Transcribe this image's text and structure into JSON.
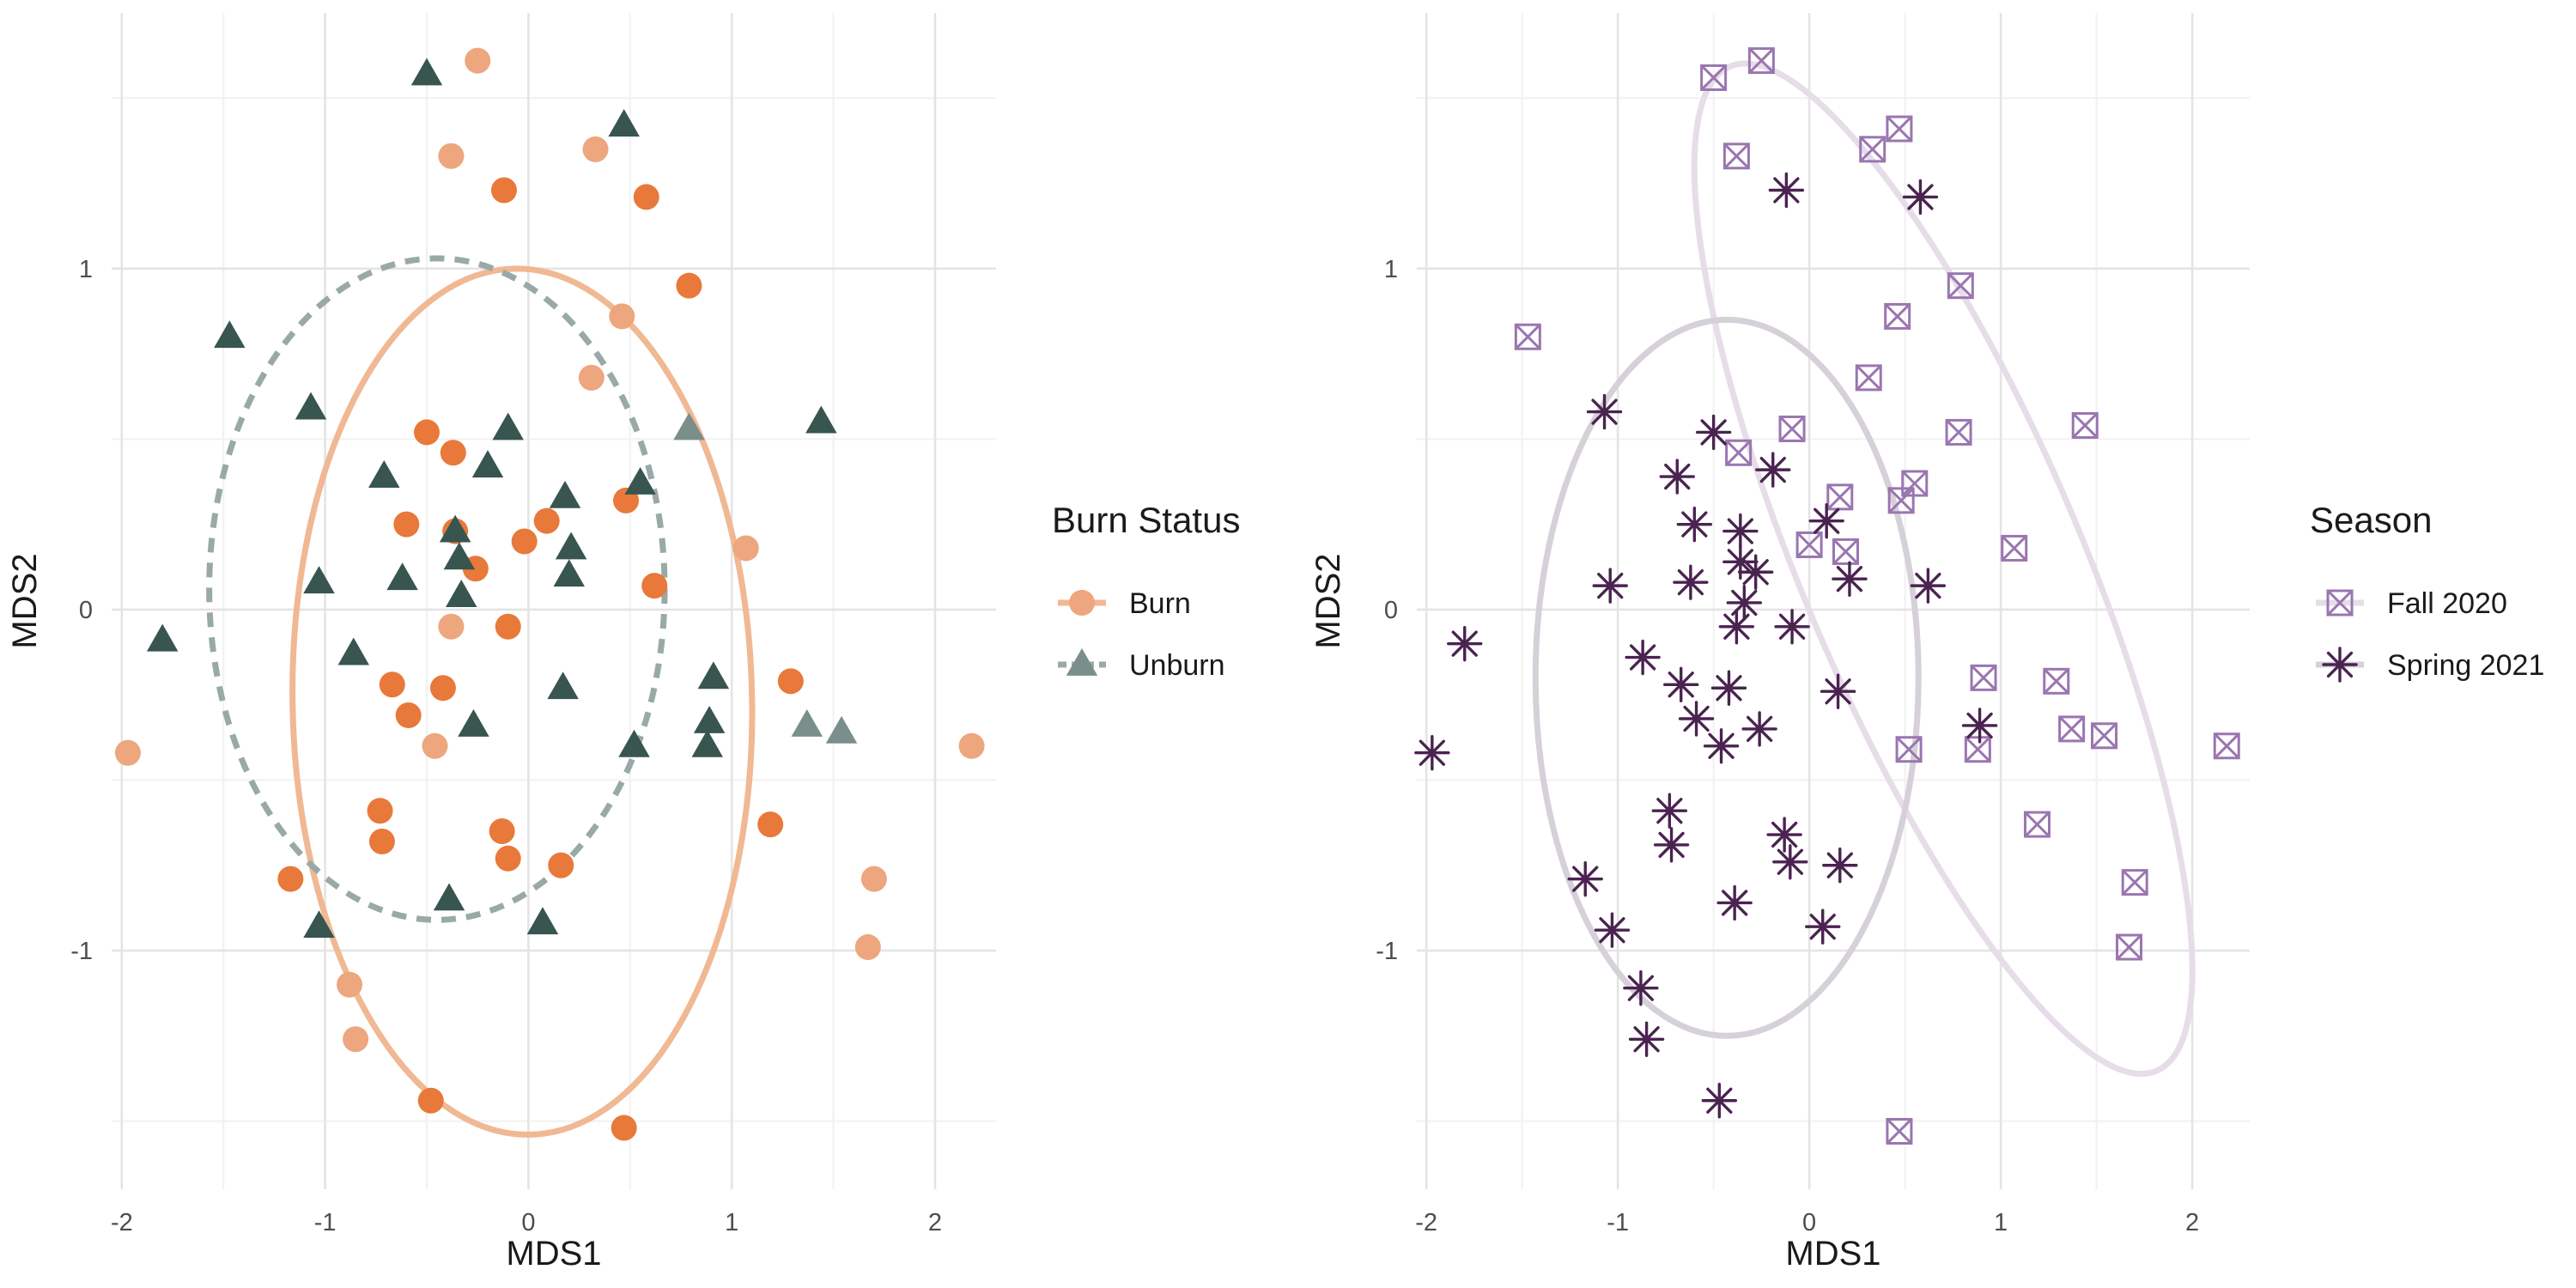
{
  "chart_data": [
    {
      "type": "scatter",
      "panel": "left",
      "xlabel": "MDS1",
      "ylabel": "MDS2",
      "xlim": [
        -2.05,
        2.3
      ],
      "ylim": [
        -1.7,
        1.75
      ],
      "xticks": [
        -2,
        -1,
        0,
        1,
        2
      ],
      "yticks": [
        -1,
        0,
        1
      ],
      "grid": true,
      "legend": {
        "title": "Burn Status",
        "position": "right"
      },
      "series": [
        {
          "name": "Burn",
          "shape": "circle",
          "color": "#e8793a",
          "light_color": "#eda67e",
          "ellipse_color": "#f0b893",
          "ellipse_style": "solid",
          "ellipse": {
            "cx": -0.03,
            "cy": -0.27,
            "rx": 1.13,
            "ry": 1.27,
            "angle": 1
          },
          "points": [
            [
              -0.25,
              1.61,
              1
            ],
            [
              -0.38,
              1.33,
              1
            ],
            [
              -0.12,
              1.23,
              0
            ],
            [
              0.33,
              1.35,
              1
            ],
            [
              0.58,
              1.21,
              0
            ],
            [
              0.79,
              0.95,
              0
            ],
            [
              0.46,
              0.86,
              1
            ],
            [
              0.31,
              0.68,
              1
            ],
            [
              -0.5,
              0.52,
              0
            ],
            [
              -0.37,
              0.46,
              0
            ],
            [
              -0.6,
              0.25,
              0
            ],
            [
              -0.36,
              0.23,
              0
            ],
            [
              0.09,
              0.26,
              0
            ],
            [
              -0.02,
              0.2,
              0
            ],
            [
              -0.26,
              0.12,
              0
            ],
            [
              0.48,
              0.32,
              0
            ],
            [
              0.62,
              0.07,
              0
            ],
            [
              1.07,
              0.18,
              1
            ],
            [
              -0.38,
              -0.05,
              1
            ],
            [
              -0.1,
              -0.05,
              0
            ],
            [
              -0.67,
              -0.22,
              0
            ],
            [
              -0.42,
              -0.23,
              0
            ],
            [
              -0.59,
              -0.31,
              0
            ],
            [
              -0.46,
              -0.4,
              1
            ],
            [
              1.29,
              -0.21,
              0
            ],
            [
              -1.97,
              -0.42,
              1
            ],
            [
              -0.73,
              -0.59,
              0
            ],
            [
              -0.72,
              -0.68,
              0
            ],
            [
              -0.13,
              -0.65,
              0
            ],
            [
              -0.1,
              -0.73,
              0
            ],
            [
              0.16,
              -0.75,
              0
            ],
            [
              1.19,
              -0.63,
              0
            ],
            [
              -1.17,
              -0.79,
              0
            ],
            [
              1.7,
              -0.79,
              1
            ],
            [
              -0.88,
              -1.1,
              1
            ],
            [
              -0.85,
              -1.26,
              1
            ],
            [
              1.67,
              -0.99,
              1
            ],
            [
              2.18,
              -0.4,
              1
            ],
            [
              -0.48,
              -1.44,
              0
            ],
            [
              0.47,
              -1.52,
              0
            ]
          ]
        },
        {
          "name": "Unburn",
          "shape": "triangle",
          "color": "#385550",
          "light_color": "#7a8f8c",
          "ellipse_color": "#99aaa6",
          "ellipse_style": "dashed",
          "ellipse": {
            "cx": -0.45,
            "cy": 0.06,
            "rx": 1.12,
            "ry": 0.97,
            "angle": 0
          },
          "points": [
            [
              -0.5,
              1.57,
              0
            ],
            [
              0.47,
              1.42,
              0
            ],
            [
              -1.47,
              0.8,
              0
            ],
            [
              -1.07,
              0.59,
              0
            ],
            [
              -0.1,
              0.53,
              0
            ],
            [
              0.79,
              0.53,
              1
            ],
            [
              1.44,
              0.55,
              0
            ],
            [
              -0.71,
              0.39,
              0
            ],
            [
              -0.2,
              0.42,
              0
            ],
            [
              0.55,
              0.37,
              0
            ],
            [
              0.18,
              0.33,
              0
            ],
            [
              -0.36,
              0.23,
              0
            ],
            [
              0.21,
              0.18,
              0
            ],
            [
              -1.03,
              0.08,
              0
            ],
            [
              -0.62,
              0.09,
              0
            ],
            [
              -0.34,
              0.15,
              0
            ],
            [
              0.2,
              0.1,
              0
            ],
            [
              -0.33,
              0.04,
              0
            ],
            [
              -1.8,
              -0.09,
              0
            ],
            [
              -0.86,
              -0.13,
              0
            ],
            [
              0.91,
              -0.2,
              0
            ],
            [
              0.17,
              -0.23,
              0
            ],
            [
              -0.27,
              -0.34,
              0
            ],
            [
              0.89,
              -0.33,
              0
            ],
            [
              1.37,
              -0.34,
              1
            ],
            [
              1.54,
              -0.36,
              1
            ],
            [
              0.52,
              -0.4,
              0
            ],
            [
              0.88,
              -0.4,
              0
            ],
            [
              -1.03,
              -0.93,
              0
            ],
            [
              -0.39,
              -0.85,
              0
            ],
            [
              0.07,
              -0.92,
              0
            ]
          ]
        }
      ]
    },
    {
      "type": "scatter",
      "panel": "right",
      "xlabel": "MDS1",
      "ylabel": "MDS2",
      "xlim": [
        -2.05,
        2.3
      ],
      "ylim": [
        -1.7,
        1.75
      ],
      "xticks": [
        -2,
        -1,
        0,
        1,
        2
      ],
      "yticks": [
        -1,
        0,
        1
      ],
      "grid": true,
      "legend": {
        "title": "Season",
        "position": "right"
      },
      "series": [
        {
          "name": "Fall 2020",
          "shape": "square-x",
          "color": "#9a76b0",
          "ellipse_color": "#e6dde9",
          "ellipse_style": "solid",
          "ellipse": {
            "cx": 0.7,
            "cy": 0.12,
            "rx": 0.73,
            "ry": 1.6,
            "angle": 23
          },
          "points": [
            [
              -0.25,
              1.61
            ],
            [
              -0.38,
              1.33
            ],
            [
              -0.5,
              1.56
            ],
            [
              0.33,
              1.35
            ],
            [
              0.47,
              1.41
            ],
            [
              0.79,
              0.95
            ],
            [
              0.46,
              0.86
            ],
            [
              0.31,
              0.68
            ],
            [
              -1.47,
              0.8
            ],
            [
              -0.09,
              0.53
            ],
            [
              0.78,
              0.52
            ],
            [
              1.44,
              0.54
            ],
            [
              -0.37,
              0.46
            ],
            [
              0.16,
              0.33
            ],
            [
              0.48,
              0.32
            ],
            [
              0.55,
              0.37
            ],
            [
              0.0,
              0.19
            ],
            [
              0.19,
              0.17
            ],
            [
              1.07,
              0.18
            ],
            [
              0.91,
              -0.2
            ],
            [
              1.29,
              -0.21
            ],
            [
              1.37,
              -0.35
            ],
            [
              1.54,
              -0.37
            ],
            [
              0.52,
              -0.41
            ],
            [
              0.88,
              -0.41
            ],
            [
              2.18,
              -0.4
            ],
            [
              1.19,
              -0.63
            ],
            [
              1.7,
              -0.8
            ],
            [
              1.67,
              -0.99
            ],
            [
              0.47,
              -1.53
            ]
          ]
        },
        {
          "name": "Spring 2021",
          "shape": "asterisk",
          "color": "#4a2350",
          "ellipse_color": "#d6d0d9",
          "ellipse_style": "solid",
          "ellipse": {
            "cx": -0.43,
            "cy": -0.2,
            "rx": 1.0,
            "ry": 1.05,
            "angle": 0
          },
          "points": [
            [
              -0.12,
              1.23
            ],
            [
              0.58,
              1.21
            ],
            [
              -1.07,
              0.58
            ],
            [
              -0.5,
              0.52
            ],
            [
              -0.69,
              0.39
            ],
            [
              -0.19,
              0.41
            ],
            [
              -0.36,
              0.23
            ],
            [
              -0.6,
              0.25
            ],
            [
              0.09,
              0.26
            ],
            [
              -0.28,
              0.11
            ],
            [
              -0.36,
              0.14
            ],
            [
              -1.04,
              0.07
            ],
            [
              -0.62,
              0.08
            ],
            [
              0.21,
              0.09
            ],
            [
              0.62,
              0.07
            ],
            [
              -0.34,
              0.02
            ],
            [
              -0.38,
              -0.05
            ],
            [
              -0.09,
              -0.05
            ],
            [
              -0.87,
              -0.14
            ],
            [
              -0.67,
              -0.22
            ],
            [
              -0.42,
              -0.23
            ],
            [
              0.15,
              -0.24
            ],
            [
              -0.59,
              -0.32
            ],
            [
              -0.26,
              -0.35
            ],
            [
              0.89,
              -0.34
            ],
            [
              -0.46,
              -0.4
            ],
            [
              -1.8,
              -0.1
            ],
            [
              -1.97,
              -0.42
            ],
            [
              -0.73,
              -0.59
            ],
            [
              -0.72,
              -0.69
            ],
            [
              -0.13,
              -0.66
            ],
            [
              -0.1,
              -0.74
            ],
            [
              0.16,
              -0.75
            ],
            [
              -1.17,
              -0.79
            ],
            [
              -1.03,
              -0.94
            ],
            [
              -0.39,
              -0.86
            ],
            [
              0.07,
              -0.93
            ],
            [
              -0.88,
              -1.11
            ],
            [
              -0.85,
              -1.26
            ],
            [
              -0.47,
              -1.44
            ]
          ]
        }
      ]
    }
  ]
}
